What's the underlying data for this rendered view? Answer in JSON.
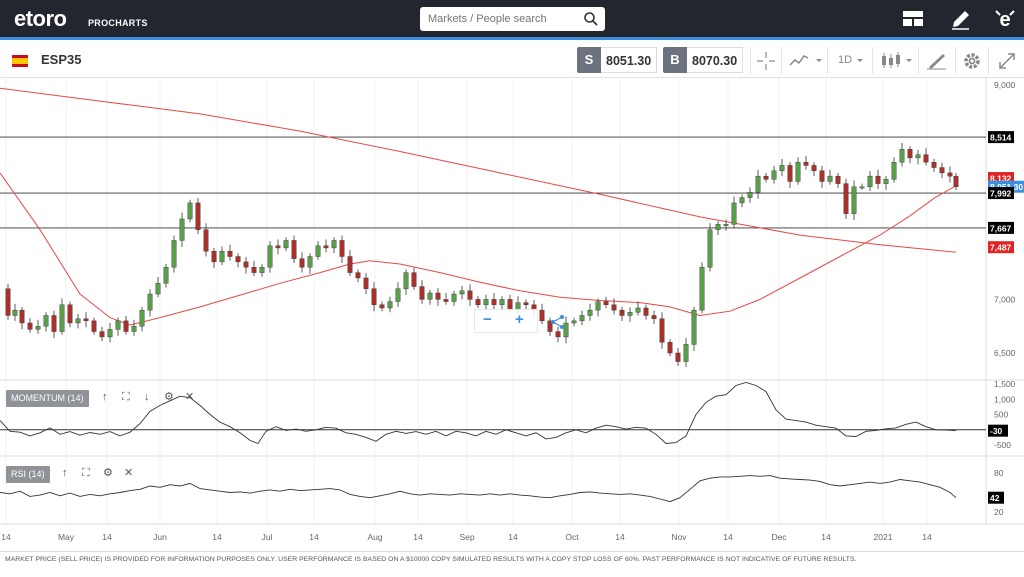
{
  "header": {
    "logo": "etoro",
    "logo_sub": "PROCHARTS",
    "search_placeholder": "Markets / People search"
  },
  "instrument": {
    "symbol": "ESP35",
    "sell_label": "S",
    "sell_price": "8051.30",
    "buy_label": "B",
    "buy_price": "8070.30",
    "timeframe": "1D"
  },
  "price_axis": {
    "ticks": [
      "9,000",
      "7,000",
      "6,500"
    ],
    "tick_values": [
      9000,
      7000,
      6500
    ],
    "levels": [
      {
        "label": "8,514",
        "value": 8514,
        "color": "#000000"
      },
      {
        "label": "8,132",
        "value": 8132,
        "color": "#e02424"
      },
      {
        "label": "8,051.30",
        "value": 8051.3,
        "color": "#3b8fdc"
      },
      {
        "label": "7,992",
        "value": 7992,
        "color": "#000000"
      },
      {
        "label": "7,667",
        "value": 7667,
        "color": "#000000"
      },
      {
        "label": "7,487",
        "value": 7487,
        "color": "#e02424"
      }
    ]
  },
  "momentum": {
    "label": "MOMENTUM (14)",
    "ticks": [
      "1,500",
      "1,000",
      "500",
      "-500"
    ],
    "tick_values": [
      1500,
      1000,
      500,
      -500
    ],
    "current": "-30"
  },
  "rsi": {
    "label": "RSI (14)",
    "ticks": [
      "80",
      "20"
    ],
    "tick_values": [
      80,
      20
    ],
    "current": "42"
  },
  "time_axis": {
    "labels": [
      "14",
      "May",
      "14",
      "Jun",
      "14",
      "Jul",
      "14",
      "Aug",
      "14",
      "Sep",
      "14",
      "Oct",
      "14",
      "Nov",
      "14",
      "Dec",
      "14",
      "2021",
      "14"
    ]
  },
  "chart_data": {
    "type": "line",
    "ylim": [
      6320,
      9050
    ],
    "close_points": [
      [
        0,
        7100
      ],
      [
        8,
        6850
      ],
      [
        15,
        6900
      ],
      [
        22,
        6780
      ],
      [
        30,
        6720
      ],
      [
        38,
        6750
      ],
      [
        46,
        6850
      ],
      [
        54,
        6700
      ],
      [
        62,
        6950
      ],
      [
        70,
        6780
      ],
      [
        78,
        6820
      ],
      [
        86,
        6800
      ],
      [
        94,
        6700
      ],
      [
        102,
        6650
      ],
      [
        110,
        6720
      ],
      [
        118,
        6800
      ],
      [
        126,
        6700
      ],
      [
        134,
        6750
      ],
      [
        142,
        6900
      ],
      [
        150,
        7050
      ],
      [
        158,
        7150
      ],
      [
        166,
        7300
      ],
      [
        174,
        7550
      ],
      [
        182,
        7750
      ],
      [
        190,
        7900
      ],
      [
        198,
        7650
      ],
      [
        206,
        7450
      ],
      [
        214,
        7350
      ],
      [
        222,
        7450
      ],
      [
        230,
        7400
      ],
      [
        238,
        7350
      ],
      [
        246,
        7300
      ],
      [
        254,
        7250
      ],
      [
        262,
        7300
      ],
      [
        270,
        7500
      ],
      [
        278,
        7480
      ],
      [
        286,
        7550
      ],
      [
        294,
        7380
      ],
      [
        302,
        7300
      ],
      [
        310,
        7400
      ],
      [
        318,
        7500
      ],
      [
        326,
        7480
      ],
      [
        334,
        7550
      ],
      [
        342,
        7400
      ],
      [
        350,
        7250
      ],
      [
        358,
        7200
      ],
      [
        366,
        7100
      ],
      [
        374,
        6950
      ],
      [
        382,
        6920
      ],
      [
        390,
        6980
      ],
      [
        398,
        7100
      ],
      [
        406,
        7250
      ],
      [
        414,
        7120
      ],
      [
        422,
        7000
      ],
      [
        430,
        7060
      ],
      [
        438,
        7000
      ],
      [
        446,
        6980
      ],
      [
        454,
        7050
      ],
      [
        462,
        7080
      ],
      [
        470,
        7000
      ],
      [
        478,
        6950
      ],
      [
        486,
        7000
      ],
      [
        494,
        6950
      ],
      [
        502,
        7000
      ],
      [
        510,
        6900
      ],
      [
        518,
        6970
      ],
      [
        526,
        6950
      ],
      [
        534,
        6900
      ],
      [
        542,
        6800
      ],
      [
        550,
        6700
      ],
      [
        558,
        6650
      ],
      [
        566,
        6780
      ],
      [
        574,
        6800
      ],
      [
        582,
        6850
      ],
      [
        590,
        6900
      ],
      [
        598,
        6980
      ],
      [
        606,
        6950
      ],
      [
        614,
        6900
      ],
      [
        622,
        6850
      ],
      [
        630,
        6880
      ],
      [
        638,
        6920
      ],
      [
        646,
        6850
      ],
      [
        654,
        6820
      ],
      [
        662,
        6600
      ],
      [
        670,
        6500
      ],
      [
        678,
        6420
      ],
      [
        686,
        6580
      ],
      [
        694,
        6900
      ],
      [
        702,
        7300
      ],
      [
        710,
        7650
      ],
      [
        718,
        7700
      ],
      [
        726,
        7700
      ],
      [
        734,
        7900
      ],
      [
        742,
        7950
      ],
      [
        750,
        8000
      ],
      [
        758,
        8150
      ],
      [
        766,
        8120
      ],
      [
        774,
        8200
      ],
      [
        782,
        8250
      ],
      [
        790,
        8100
      ],
      [
        798,
        8280
      ],
      [
        806,
        8250
      ],
      [
        814,
        8200
      ],
      [
        822,
        8100
      ],
      [
        830,
        8150
      ],
      [
        838,
        8080
      ],
      [
        846,
        7800
      ],
      [
        854,
        8050
      ],
      [
        862,
        8050
      ],
      [
        870,
        8150
      ],
      [
        878,
        8080
      ],
      [
        886,
        8120
      ],
      [
        894,
        8280
      ],
      [
        902,
        8400
      ],
      [
        910,
        8320
      ],
      [
        918,
        8350
      ],
      [
        926,
        8280
      ],
      [
        934,
        8230
      ],
      [
        942,
        8180
      ],
      [
        950,
        8150
      ],
      [
        956,
        8051
      ]
    ],
    "ma_short_points": [
      [
        0,
        8180
      ],
      [
        40,
        7650
      ],
      [
        80,
        7050
      ],
      [
        110,
        6830
      ],
      [
        130,
        6760
      ],
      [
        160,
        6830
      ],
      [
        200,
        6930
      ],
      [
        240,
        7040
      ],
      [
        280,
        7150
      ],
      [
        320,
        7250
      ],
      [
        350,
        7330
      ],
      [
        370,
        7360
      ],
      [
        400,
        7330
      ],
      [
        440,
        7250
      ],
      [
        480,
        7160
      ],
      [
        520,
        7080
      ],
      [
        560,
        7020
      ],
      [
        600,
        6990
      ],
      [
        640,
        6970
      ],
      [
        670,
        6930
      ],
      [
        700,
        6850
      ],
      [
        730,
        6890
      ],
      [
        760,
        7000
      ],
      [
        800,
        7200
      ],
      [
        840,
        7400
      ],
      [
        880,
        7600
      ],
      [
        910,
        7780
      ],
      [
        935,
        7950
      ],
      [
        956,
        8060
      ]
    ],
    "ma_long_points": [
      [
        0,
        8970
      ],
      [
        100,
        8850
      ],
      [
        200,
        8730
      ],
      [
        300,
        8570
      ],
      [
        400,
        8380
      ],
      [
        500,
        8180
      ],
      [
        600,
        7980
      ],
      [
        700,
        7770
      ],
      [
        800,
        7600
      ],
      [
        880,
        7510
      ],
      [
        956,
        7440
      ]
    ],
    "momentum_points": [
      [
        0,
        300
      ],
      [
        10,
        -50
      ],
      [
        20,
        -80
      ],
      [
        30,
        -200
      ],
      [
        40,
        -100
      ],
      [
        50,
        60
      ],
      [
        60,
        -150
      ],
      [
        70,
        -60
      ],
      [
        80,
        -180
      ],
      [
        90,
        -90
      ],
      [
        100,
        -150
      ],
      [
        110,
        -60
      ],
      [
        120,
        -200
      ],
      [
        130,
        -80
      ],
      [
        140,
        200
      ],
      [
        150,
        600
      ],
      [
        160,
        800
      ],
      [
        170,
        950
      ],
      [
        180,
        1100
      ],
      [
        190,
        1050
      ],
      [
        200,
        800
      ],
      [
        210,
        500
      ],
      [
        220,
        250
      ],
      [
        230,
        100
      ],
      [
        240,
        -100
      ],
      [
        250,
        -350
      ],
      [
        258,
        -450
      ],
      [
        266,
        -50
      ],
      [
        276,
        100
      ],
      [
        286,
        -20
      ],
      [
        296,
        20
      ],
      [
        306,
        -50
      ],
      [
        316,
        0
      ],
      [
        326,
        80
      ],
      [
        336,
        50
      ],
      [
        346,
        -100
      ],
      [
        356,
        -150
      ],
      [
        366,
        -250
      ],
      [
        376,
        -380
      ],
      [
        386,
        -150
      ],
      [
        396,
        -50
      ],
      [
        406,
        -120
      ],
      [
        416,
        -60
      ],
      [
        426,
        -150
      ],
      [
        436,
        -50
      ],
      [
        446,
        -200
      ],
      [
        456,
        -50
      ],
      [
        466,
        -100
      ],
      [
        476,
        -200
      ],
      [
        486,
        -50
      ],
      [
        496,
        -150
      ],
      [
        506,
        0
      ],
      [
        516,
        -100
      ],
      [
        526,
        -200
      ],
      [
        536,
        -100
      ],
      [
        546,
        -300
      ],
      [
        556,
        -250
      ],
      [
        566,
        -100
      ],
      [
        576,
        0
      ],
      [
        586,
        -100
      ],
      [
        596,
        50
      ],
      [
        606,
        150
      ],
      [
        616,
        100
      ],
      [
        626,
        20
      ],
      [
        636,
        80
      ],
      [
        646,
        50
      ],
      [
        656,
        -150
      ],
      [
        666,
        -450
      ],
      [
        676,
        -420
      ],
      [
        686,
        -200
      ],
      [
        696,
        500
      ],
      [
        706,
        900
      ],
      [
        716,
        1100
      ],
      [
        726,
        1150
      ],
      [
        736,
        1450
      ],
      [
        746,
        1550
      ],
      [
        756,
        1450
      ],
      [
        766,
        1250
      ],
      [
        776,
        650
      ],
      [
        786,
        350
      ],
      [
        796,
        300
      ],
      [
        806,
        250
      ],
      [
        816,
        150
      ],
      [
        826,
        100
      ],
      [
        836,
        50
      ],
      [
        846,
        -200
      ],
      [
        856,
        -220
      ],
      [
        866,
        -50
      ],
      [
        876,
        -20
      ],
      [
        886,
        30
      ],
      [
        896,
        60
      ],
      [
        906,
        180
      ],
      [
        916,
        250
      ],
      [
        926,
        100
      ],
      [
        936,
        0
      ],
      [
        946,
        -10
      ],
      [
        956,
        -30
      ]
    ],
    "rsi_points": [
      [
        0,
        50
      ],
      [
        10,
        48
      ],
      [
        20,
        52
      ],
      [
        30,
        44
      ],
      [
        40,
        46
      ],
      [
        50,
        50
      ],
      [
        60,
        45
      ],
      [
        70,
        49
      ],
      [
        80,
        44
      ],
      [
        90,
        47
      ],
      [
        100,
        45
      ],
      [
        110,
        48
      ],
      [
        120,
        50
      ],
      [
        130,
        53
      ],
      [
        140,
        55
      ],
      [
        150,
        60
      ],
      [
        160,
        58
      ],
      [
        170,
        62
      ],
      [
        180,
        60
      ],
      [
        190,
        64
      ],
      [
        200,
        56
      ],
      [
        210,
        54
      ],
      [
        220,
        52
      ],
      [
        230,
        50
      ],
      [
        240,
        51
      ],
      [
        250,
        49
      ],
      [
        260,
        52
      ],
      [
        270,
        54
      ],
      [
        280,
        52
      ],
      [
        290,
        55
      ],
      [
        300,
        53
      ],
      [
        310,
        54
      ],
      [
        320,
        55
      ],
      [
        330,
        56
      ],
      [
        340,
        54
      ],
      [
        350,
        47
      ],
      [
        360,
        44
      ],
      [
        370,
        42
      ],
      [
        380,
        45
      ],
      [
        390,
        48
      ],
      [
        400,
        52
      ],
      [
        410,
        48
      ],
      [
        420,
        46
      ],
      [
        430,
        48
      ],
      [
        440,
        47
      ],
      [
        450,
        46
      ],
      [
        460,
        48
      ],
      [
        470,
        47
      ],
      [
        480,
        46
      ],
      [
        490,
        48
      ],
      [
        500,
        46
      ],
      [
        510,
        48
      ],
      [
        520,
        46
      ],
      [
        530,
        45
      ],
      [
        540,
        43
      ],
      [
        550,
        42
      ],
      [
        560,
        45
      ],
      [
        570,
        47
      ],
      [
        580,
        50
      ],
      [
        590,
        51
      ],
      [
        600,
        49
      ],
      [
        610,
        48
      ],
      [
        620,
        47
      ],
      [
        630,
        48
      ],
      [
        640,
        46
      ],
      [
        650,
        44
      ],
      [
        660,
        40
      ],
      [
        670,
        36
      ],
      [
        680,
        42
      ],
      [
        690,
        55
      ],
      [
        700,
        68
      ],
      [
        710,
        72
      ],
      [
        720,
        74
      ],
      [
        730,
        74
      ],
      [
        740,
        75
      ],
      [
        750,
        76
      ],
      [
        760,
        75
      ],
      [
        770,
        76
      ],
      [
        780,
        72
      ],
      [
        790,
        71
      ],
      [
        800,
        70
      ],
      [
        810,
        69
      ],
      [
        820,
        67
      ],
      [
        830,
        62
      ],
      [
        840,
        60
      ],
      [
        850,
        62
      ],
      [
        860,
        64
      ],
      [
        870,
        66
      ],
      [
        880,
        64
      ],
      [
        890,
        66
      ],
      [
        900,
        70
      ],
      [
        910,
        68
      ],
      [
        920,
        66
      ],
      [
        930,
        62
      ],
      [
        940,
        58
      ],
      [
        950,
        50
      ],
      [
        956,
        42
      ]
    ]
  },
  "disclaimer": "MARKET PRICE (SELL PRICE) IS PROVIDED FOR INFORMATION PURPOSES ONLY. USER PERFORMANCE IS BASED ON A $10000 COPY SIMULATED RESULTS WITH A COPY STOP LOSS OF 60%. PAST PERFORMANCE IS NOT INDICATIVE OF FUTURE RESULTS."
}
